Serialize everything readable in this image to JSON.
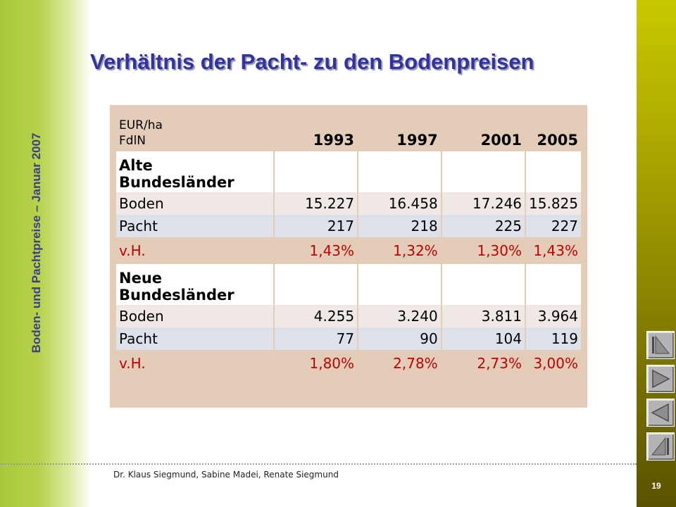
{
  "side_title": "Boden- und Pachtpreise – Januar 2007",
  "title": "Verhältnis der Pacht- zu den Bodenpreisen",
  "table": {
    "unit_lines": [
      "EUR/ha",
      "FdlN"
    ],
    "years": [
      "1993",
      "1997",
      "2001",
      "2005"
    ],
    "sections": [
      {
        "label": "Alte Bundesländer",
        "rows": [
          {
            "label": "Boden",
            "values": [
              "15.227",
              "16.458",
              "17.246",
              "15.825"
            ]
          },
          {
            "label": "Pacht",
            "values": [
              "217",
              "218",
              "225",
              "227"
            ]
          },
          {
            "label": "v.H.",
            "values": [
              "1,43%",
              "1,32%",
              "1,30%",
              "1,43%"
            ]
          }
        ]
      },
      {
        "label": "Neue Bundesländer",
        "rows": [
          {
            "label": "Boden",
            "values": [
              "4.255",
              "3.240",
              "3.811",
              "3.964"
            ]
          },
          {
            "label": "Pacht",
            "values": [
              "77",
              "90",
              "104",
              "119"
            ]
          },
          {
            "label": "v.H.",
            "values": [
              "1,80%",
              "2,78%",
              "2,73%",
              "3,00%"
            ]
          }
        ]
      }
    ]
  },
  "footer": {
    "authors": "Dr. Klaus Siegmund, Sabine Madei, Renate Siegmund",
    "page_number": "19"
  },
  "nav_icons": [
    "first-slide-icon",
    "next-slide-icon",
    "previous-slide-icon",
    "last-slide-icon"
  ],
  "colors": {
    "title": "#3333a0",
    "percent_text": "#c00000",
    "table_frame": "#e4cdb8",
    "boden_row": "#f0e8e4",
    "pacht_row": "#dde2ea"
  }
}
